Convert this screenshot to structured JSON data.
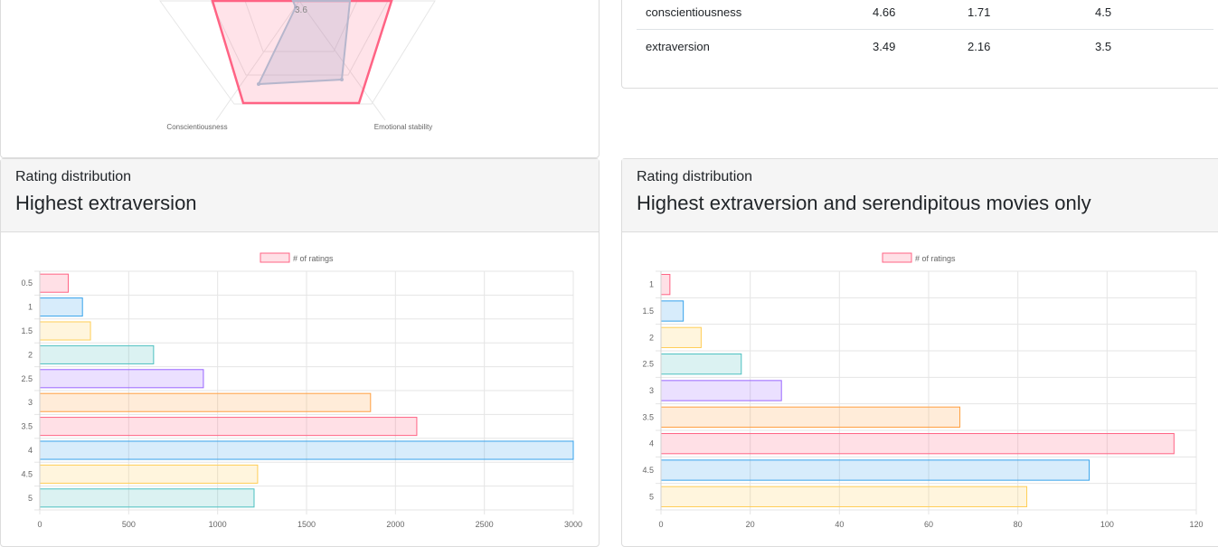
{
  "radar": {
    "labels": [
      "Conscientiousness",
      "Emotional stability"
    ],
    "tick_label": "3.6"
  },
  "stats_table": {
    "rows": [
      {
        "trait": "conscientiousness",
        "mean": "4.66",
        "std": "1.71",
        "median": "4.5"
      },
      {
        "trait": "extraversion",
        "mean": "3.49",
        "std": "2.16",
        "median": "3.5"
      }
    ]
  },
  "left_panel": {
    "subtitle": "Rating distribution",
    "title": "Highest extraversion"
  },
  "right_panel": {
    "subtitle": "Rating distribution",
    "title": "Highest extraversion and serendipitous movies only"
  },
  "colors": {
    "pink": "#ff6384",
    "blue": "#36a2eb",
    "yellow": "#ffce56",
    "teal": "#4bc0c0",
    "purple": "#9966ff",
    "orange": "#ff9f40"
  },
  "chart_data": [
    {
      "type": "bar",
      "orientation": "horizontal",
      "legend": "# of ratings",
      "legend_position": "top",
      "categories": [
        "0.5",
        "1",
        "1.5",
        "2",
        "2.5",
        "3",
        "3.5",
        "4",
        "4.5",
        "5"
      ],
      "values": [
        160,
        240,
        285,
        640,
        920,
        1860,
        2120,
        3000,
        1225,
        1205
      ],
      "xlim": [
        0,
        3000
      ],
      "xticks": [
        0,
        500,
        1000,
        1500,
        2000,
        2500,
        3000
      ],
      "grid": true
    },
    {
      "type": "bar",
      "orientation": "horizontal",
      "legend": "# of ratings",
      "legend_position": "top",
      "categories": [
        "1",
        "1.5",
        "2",
        "2.5",
        "3",
        "3.5",
        "4",
        "4.5",
        "5"
      ],
      "values": [
        2,
        5,
        9,
        18,
        27,
        67,
        115,
        96,
        82
      ],
      "xlim": [
        0,
        120
      ],
      "xticks": [
        0,
        20,
        40,
        60,
        80,
        100,
        120
      ],
      "grid": true
    }
  ]
}
